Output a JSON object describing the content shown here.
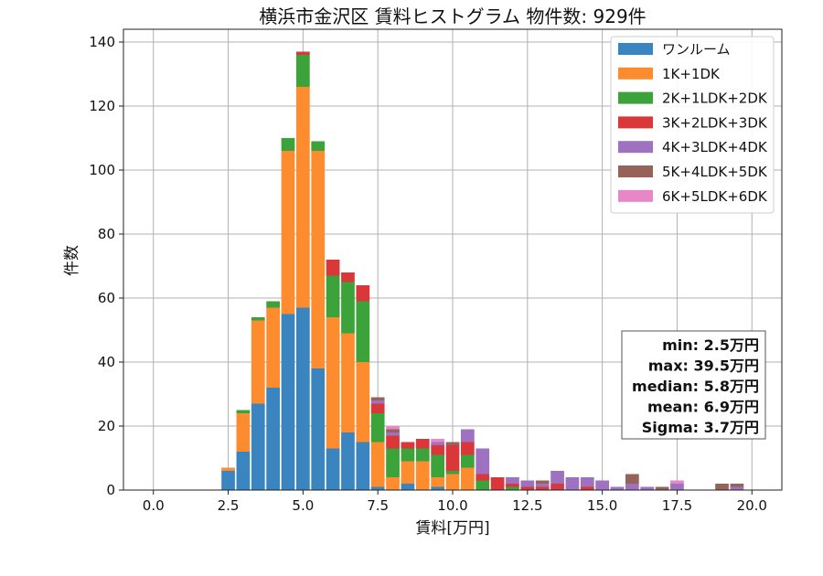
{
  "chart_data": {
    "type": "bar",
    "title": "横浜市金沢区 賃料ヒストグラム 物件数: 929件",
    "xlabel": "賃料[万円]",
    "ylabel": "件数",
    "xlim": [
      -1.0,
      21.0
    ],
    "ylim": [
      0,
      144
    ],
    "xticks": [
      "0.0",
      "2.5",
      "5.0",
      "7.5",
      "10.0",
      "12.5",
      "15.0",
      "17.5",
      "20.0"
    ],
    "yticks": [
      "0",
      "20",
      "40",
      "60",
      "80",
      "100",
      "120",
      "140"
    ],
    "bin_width": 0.5,
    "grid": true,
    "legend_position": "top-right",
    "x": [
      2.5,
      3.0,
      3.5,
      4.0,
      4.5,
      5.0,
      5.5,
      6.0,
      6.5,
      7.0,
      7.5,
      8.0,
      8.5,
      9.0,
      9.5,
      10.0,
      10.5,
      11.0,
      11.5,
      12.0,
      12.5,
      13.0,
      13.5,
      14.0,
      14.5,
      15.0,
      15.5,
      16.0,
      16.5,
      17.0,
      17.5,
      18.0,
      18.5,
      19.0,
      19.5
    ],
    "series": [
      {
        "name": "ワンルーム",
        "color": "#3a85c0",
        "values": [
          6,
          12,
          27,
          32,
          55,
          57,
          38,
          13,
          18,
          15,
          1,
          0,
          2,
          0,
          1,
          0,
          0,
          0,
          0,
          0,
          0,
          0,
          0,
          0,
          0,
          0,
          0,
          0,
          0,
          0,
          0,
          0,
          0,
          0,
          0
        ]
      },
      {
        "name": "1K+1DK",
        "color": "#fd8c2f",
        "values": [
          1,
          12,
          26,
          25,
          51,
          69,
          68,
          41,
          31,
          25,
          14,
          4,
          7,
          9,
          3,
          5,
          7,
          0,
          0,
          0,
          0,
          0,
          0,
          0,
          0,
          0,
          0,
          0,
          0,
          0,
          0,
          0,
          0,
          0,
          0
        ]
      },
      {
        "name": "2K+1LDK+2DK",
        "color": "#3ca23a",
        "values": [
          0,
          1,
          1,
          2,
          4,
          10,
          3,
          13,
          16,
          19,
          9,
          9,
          4,
          4,
          7,
          1,
          4,
          3,
          0,
          1,
          0,
          0,
          0,
          0,
          0,
          0,
          0,
          0,
          0,
          0,
          0,
          0,
          0,
          0,
          0
        ]
      },
      {
        "name": "3K+2LDK+3DK",
        "color": "#d9373a",
        "values": [
          0,
          0,
          0,
          0,
          0,
          1,
          0,
          5,
          3,
          5,
          3,
          4,
          2,
          3,
          3,
          8,
          4,
          2,
          4,
          1,
          1,
          1,
          2,
          0,
          1,
          0,
          0,
          0,
          0,
          0,
          0,
          0,
          0,
          0,
          0
        ]
      },
      {
        "name": "4K+3LDK+4DK",
        "color": "#9e72c1",
        "values": [
          0,
          0,
          0,
          0,
          0,
          0,
          0,
          0,
          0,
          0,
          1,
          1,
          0,
          0,
          1,
          0,
          4,
          8,
          0,
          2,
          2,
          1,
          4,
          4,
          3,
          3,
          1,
          2,
          1,
          0,
          2,
          0,
          0,
          0,
          1
        ]
      },
      {
        "name": "5K+4LDK+5DK",
        "color": "#966358",
        "values": [
          0,
          0,
          0,
          0,
          0,
          0,
          0,
          0,
          0,
          0,
          1,
          1,
          0,
          0,
          0,
          1,
          0,
          0,
          0,
          0,
          0,
          1,
          0,
          0,
          0,
          0,
          0,
          3,
          0,
          1,
          0,
          0,
          0,
          2,
          1
        ]
      },
      {
        "name": "6K+5LDK+6DK",
        "color": "#e887c8",
        "values": [
          0,
          0,
          0,
          0,
          0,
          0,
          0,
          0,
          0,
          0,
          0,
          1,
          0,
          0,
          1,
          0,
          0,
          0,
          0,
          0,
          0,
          0,
          0,
          0,
          0,
          0,
          0,
          0,
          0,
          0,
          1,
          0,
          0,
          0,
          0
        ]
      }
    ],
    "stats": [
      "min: 2.5万円",
      "max: 39.5万円",
      "median: 5.8万円",
      "mean: 6.9万円",
      "Sigma: 3.7万円"
    ]
  }
}
